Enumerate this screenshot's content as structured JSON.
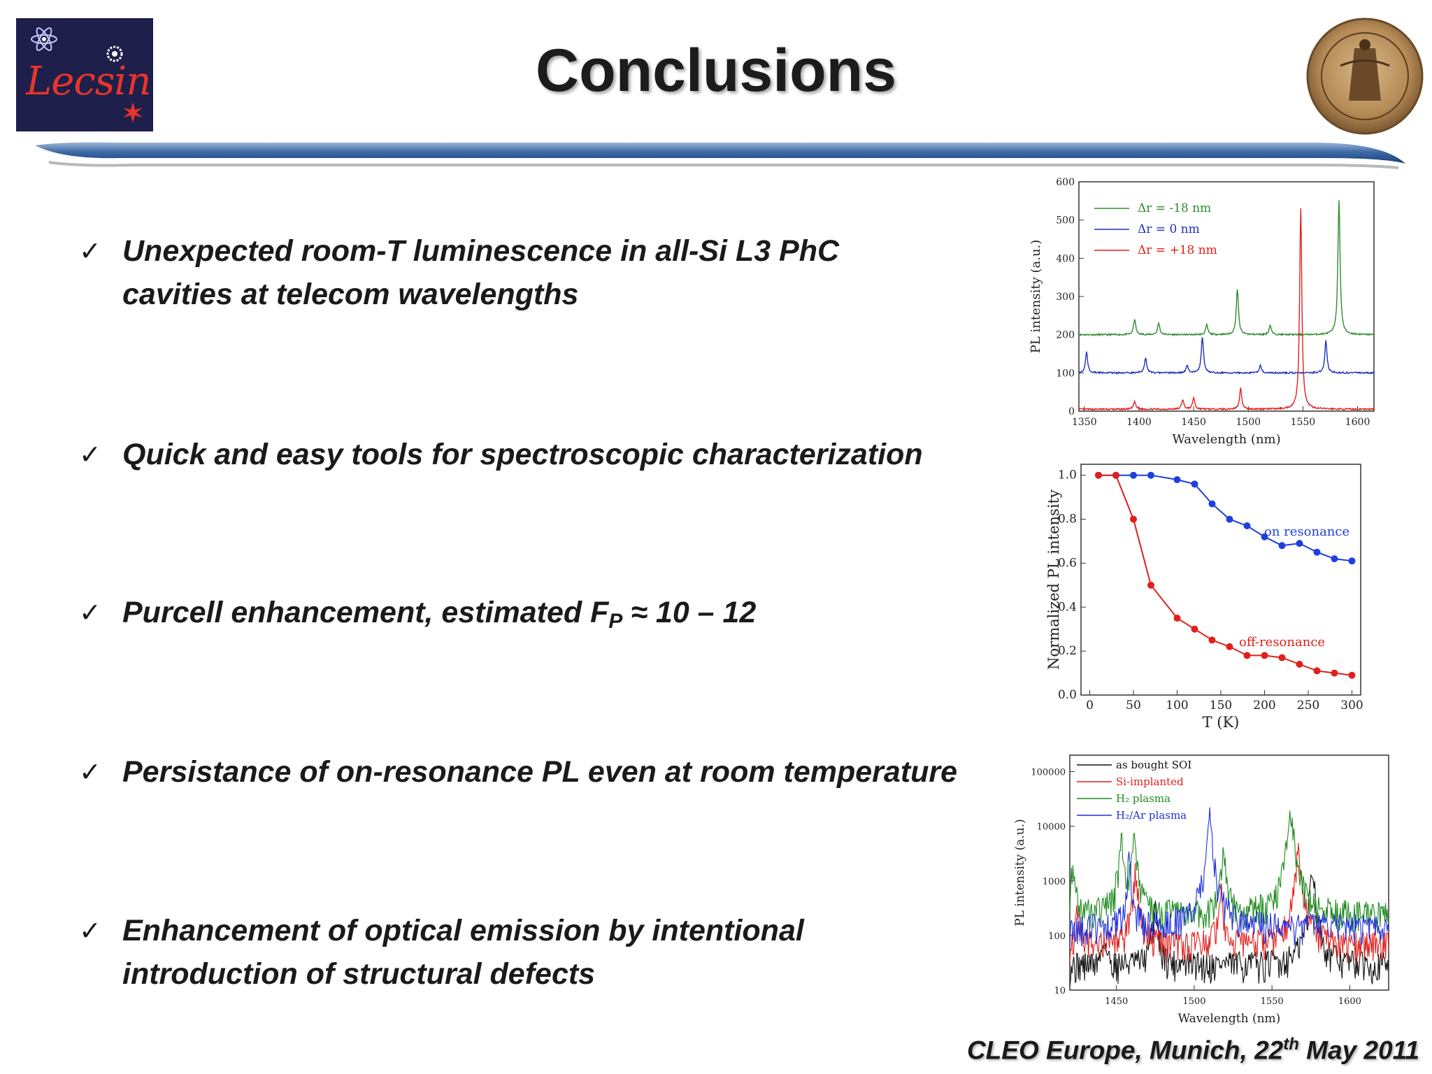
{
  "header": {
    "logo_text": "Lecsin",
    "title": "Conclusions"
  },
  "bullets": [
    {
      "lines": [
        "Unexpected room-T luminescence in all-Si L3 PhC",
        "cavities at telecom wavelengths"
      ]
    },
    {
      "lines": [
        "Quick and easy tools for spectroscopic characterization"
      ]
    },
    {
      "lines": [
        "Purcell enhancement, estimated F",
        "P",
        " ≈ 10 – 12"
      ]
    },
    {
      "lines": [
        "Persistance of on-resonance PL even at room temperature"
      ]
    },
    {
      "lines": [
        "Enhancement of optical emission by intentional",
        "introduction of structural defects"
      ]
    }
  ],
  "footer": {
    "text_before": "CLEO Europe, Munich, 22",
    "superscript": "th",
    "text_after": " May 2011"
  },
  "chart_data": [
    {
      "type": "line",
      "xlabel": "Wavelength (nm)",
      "ylabel": "PL intensity (a.u.)",
      "xlim": [
        1345,
        1615
      ],
      "ylim": [
        0,
        600
      ],
      "xticks": [
        1350,
        1400,
        1450,
        1500,
        1550,
        1600
      ],
      "yticks": [
        0,
        100,
        200,
        300,
        400,
        500,
        600
      ],
      "legend_position": "top-left",
      "series": [
        {
          "name": "Δr = -18 nm",
          "color": "#2e8b2e",
          "baseline": 200,
          "peaks": [
            [
              1396,
              40
            ],
            [
              1418,
              30
            ],
            [
              1462,
              25
            ],
            [
              1490,
              120
            ],
            [
              1520,
              25
            ],
            [
              1583,
              350
            ]
          ]
        },
        {
          "name": "Δr = 0 nm",
          "color": "#1f2fbf",
          "baseline": 100,
          "peaks": [
            [
              1352,
              55
            ],
            [
              1406,
              40
            ],
            [
              1444,
              20
            ],
            [
              1458,
              95
            ],
            [
              1511,
              20
            ],
            [
              1571,
              85
            ]
          ]
        },
        {
          "name": "Δr = +18 nm",
          "color": "#e0201c",
          "baseline": 5,
          "peaks": [
            [
              1396,
              20
            ],
            [
              1440,
              25
            ],
            [
              1450,
              30
            ],
            [
              1493,
              55
            ],
            [
              1548,
              525
            ]
          ]
        }
      ]
    },
    {
      "type": "line",
      "xlabel": "T (K)",
      "ylabel": "Normalized PL intensity",
      "xlim": [
        -10,
        310
      ],
      "ylim": [
        0,
        1.05
      ],
      "xticks": [
        0,
        50,
        100,
        150,
        200,
        250,
        300
      ],
      "yticks": [
        0.0,
        0.2,
        0.4,
        0.6,
        0.8,
        1.0
      ],
      "series": [
        {
          "name": "on resonance",
          "color": "#1f3fdf",
          "x": [
            10,
            30,
            50,
            70,
            100,
            120,
            140,
            160,
            180,
            200,
            220,
            240,
            260,
            280,
            300
          ],
          "y": [
            1.0,
            1.0,
            1.0,
            1.0,
            0.98,
            0.96,
            0.87,
            0.8,
            0.77,
            0.72,
            0.68,
            0.69,
            0.65,
            0.62,
            0.61
          ]
        },
        {
          "name": "off-resonance",
          "color": "#e0201c",
          "x": [
            10,
            30,
            50,
            70,
            100,
            120,
            140,
            160,
            180,
            200,
            220,
            240,
            260,
            280,
            300
          ],
          "y": [
            1.0,
            1.0,
            0.8,
            0.5,
            0.35,
            0.3,
            0.25,
            0.22,
            0.18,
            0.18,
            0.17,
            0.14,
            0.11,
            0.1,
            0.09
          ]
        }
      ]
    },
    {
      "type": "line",
      "xlabel": "Wavelength (nm)",
      "ylabel": "PL intensity (a.u.)",
      "yscale": "log",
      "xlim": [
        1420,
        1625
      ],
      "ylim": [
        10,
        200000
      ],
      "xticks": [
        1450,
        1500,
        1550,
        1600
      ],
      "yticks": [
        10,
        100,
        1000,
        10000,
        100000
      ],
      "legend_position": "top-left",
      "series": [
        {
          "name": "as bought SOI",
          "color": "#111111",
          "baseline": 30,
          "peaks": [
            [
              1442,
              60
            ],
            [
              1475,
              350
            ],
            [
              1576,
              1800
            ]
          ]
        },
        {
          "name": "Si-implanted",
          "color": "#e0201c",
          "baseline": 70,
          "peaks": [
            [
              1425,
              200
            ],
            [
              1462,
              1500
            ],
            [
              1517,
              700
            ],
            [
              1567,
              5000
            ]
          ]
        },
        {
          "name": "H₂ plasma",
          "color": "#1f8b1f",
          "baseline": 250,
          "peaks": [
            [
              1422,
              1500
            ],
            [
              1453,
              5000
            ],
            [
              1461,
              6500
            ],
            [
              1519,
              3000
            ],
            [
              1562,
              24000
            ]
          ]
        },
        {
          "name": "H₂/Ar plasma",
          "color": "#1f2fdf",
          "baseline": 150,
          "peaks": [
            [
              1458,
              2000
            ],
            [
              1510,
              15000
            ]
          ]
        }
      ]
    }
  ]
}
